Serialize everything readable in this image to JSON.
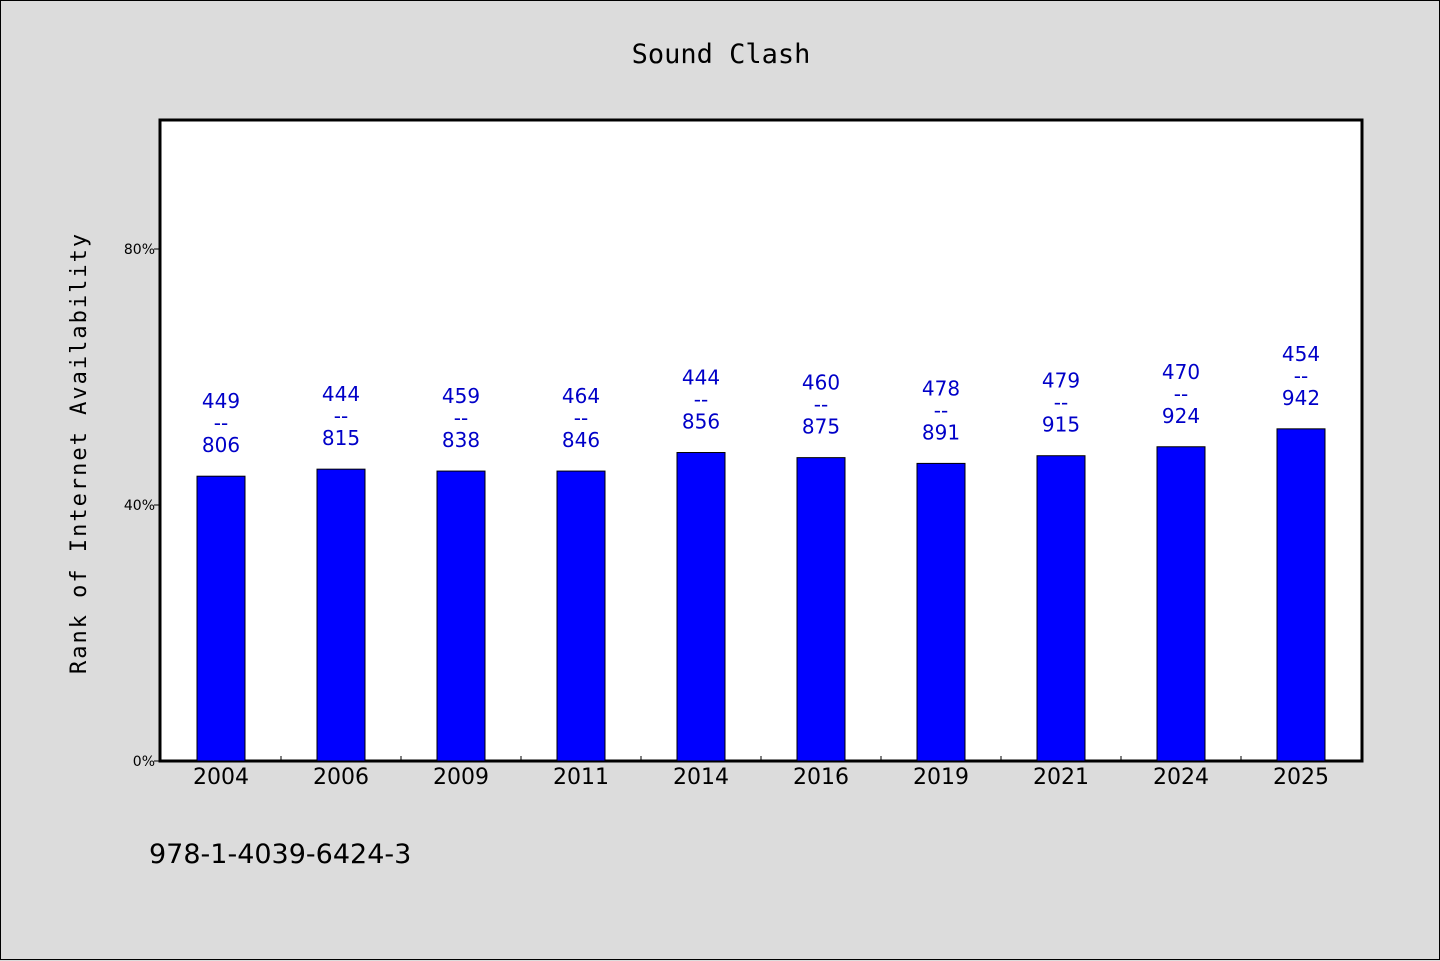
{
  "chart_data": {
    "type": "bar",
    "title": "Sound Clash",
    "ylabel": "Rank of Internet Availability",
    "xlabel": "",
    "ylim": [
      0,
      100
    ],
    "yticks": [
      {
        "value": 0,
        "label": "0%"
      },
      {
        "value": 40,
        "label": "40%"
      },
      {
        "value": 80,
        "label": "80%"
      }
    ],
    "categories": [
      "2004",
      "2006",
      "2009",
      "2011",
      "2014",
      "2016",
      "2019",
      "2021",
      "2024",
      "2025"
    ],
    "values": [
      44.5,
      45.6,
      45.3,
      45.3,
      48.2,
      47.4,
      46.5,
      47.7,
      49.1,
      51.9
    ],
    "bar_labels": [
      [
        "449",
        "--",
        "806"
      ],
      [
        "444",
        "--",
        "815"
      ],
      [
        "459",
        "--",
        "838"
      ],
      [
        "464",
        "--",
        "846"
      ],
      [
        "444",
        "--",
        "856"
      ],
      [
        "460",
        "--",
        "875"
      ],
      [
        "478",
        "--",
        "891"
      ],
      [
        "479",
        "--",
        "915"
      ],
      [
        "470",
        "--",
        "924"
      ],
      [
        "454",
        "--",
        "942"
      ]
    ],
    "bar_color": "#0000ff",
    "label_color": "#0000c8",
    "grid": false,
    "legend": "none"
  },
  "footer": {
    "text": "978-1-4039-6424-3"
  }
}
